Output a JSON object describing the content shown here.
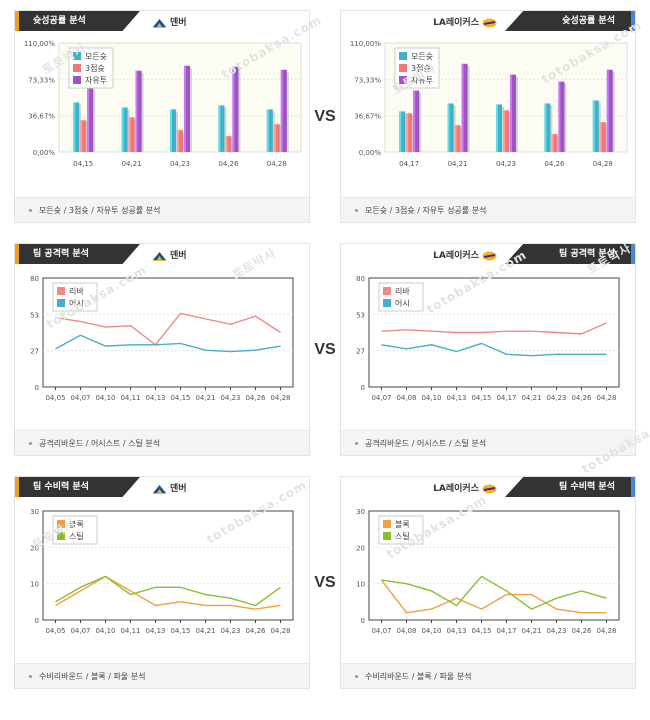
{
  "vs_label": "VS",
  "watermark": {
    "korean": "토토박사",
    "latin": "totobaksa.com"
  },
  "teams": {
    "left": {
      "name": "덴버",
      "logo_icon": "nuggets-logo-icon"
    },
    "right": {
      "name": "LA레이커스",
      "logo_icon": "lakers-logo-icon"
    }
  },
  "colors": {
    "all": "#3fb3c6",
    "three": "#f07878",
    "free": "#a052c8",
    "rebound": "#f08888",
    "assist": "#45b0c8",
    "block": "#f0a040",
    "steal": "#88c030",
    "left_accent": "#f0a020",
    "right_accent": "#4a86d8"
  },
  "sections": [
    {
      "id": "shooting",
      "title": "슛성공률 분석",
      "footer": "모든슛 / 3점슛 / 자유투 성공률 분석",
      "legend": [
        "모든슛",
        "3점슛",
        "자유투"
      ],
      "chart_data": [
        {
          "type": "bar",
          "team": "덴버",
          "categories": [
            "04,15",
            "04,21",
            "04,23",
            "04,26",
            "04,28"
          ],
          "yticks": [
            "110,00%",
            "73,33%",
            "36,67%",
            "0,00%"
          ],
          "ylim": [
            0,
            110
          ],
          "series": [
            {
              "name": "모든슛",
              "values": [
                50,
                45,
                43,
                47,
                43
              ]
            },
            {
              "name": "3점슛",
              "values": [
                32,
                35,
                22,
                16,
                28
              ]
            },
            {
              "name": "자유투",
              "values": [
                65,
                82,
                87,
                86,
                83
              ]
            }
          ]
        },
        {
          "type": "bar",
          "team": "LA레이커스",
          "categories": [
            "04,17",
            "04,21",
            "04,23",
            "04,26",
            "04,28"
          ],
          "yticks": [
            "110,00%",
            "73,33%",
            "36,67%",
            "0,00%"
          ],
          "ylim": [
            0,
            110
          ],
          "series": [
            {
              "name": "모든슛",
              "values": [
                41,
                49,
                48,
                49,
                52
              ]
            },
            {
              "name": "3점슛",
              "values": [
                39,
                27,
                42,
                18,
                30
              ]
            },
            {
              "name": "자유투",
              "values": [
                62,
                89,
                78,
                71,
                83
              ]
            }
          ]
        }
      ]
    },
    {
      "id": "offense",
      "title": "팀 공격력 분석",
      "footer": "공격리바운드 / 어시스트 / 스틸 분석",
      "legend": [
        "리바",
        "어시"
      ],
      "chart_data": [
        {
          "type": "line",
          "team": "덴버",
          "categories": [
            "04,05",
            "04,07",
            "04,10",
            "04,11",
            "04,13",
            "04,15",
            "04,21",
            "04,23",
            "04,26",
            "04,28"
          ],
          "yticks": [
            "80",
            "53",
            "27",
            "0"
          ],
          "ylim": [
            0,
            80
          ],
          "series": [
            {
              "name": "리바",
              "values": [
                51,
                48,
                44,
                45,
                31,
                54,
                50,
                46,
                52,
                40
              ]
            },
            {
              "name": "어시",
              "values": [
                28,
                38,
                30,
                31,
                31,
                32,
                27,
                26,
                27,
                30
              ]
            }
          ]
        },
        {
          "type": "line",
          "team": "LA레이커스",
          "categories": [
            "04,07",
            "04,08",
            "04,10",
            "04,13",
            "04,15",
            "04,17",
            "04,21",
            "04,23",
            "04,26",
            "04,28"
          ],
          "yticks": [
            "80",
            "53",
            "27",
            "0"
          ],
          "ylim": [
            0,
            80
          ],
          "series": [
            {
              "name": "리바",
              "values": [
                41,
                42,
                41,
                40,
                40,
                41,
                41,
                40,
                39,
                47
              ]
            },
            {
              "name": "어시",
              "values": [
                31,
                28,
                31,
                26,
                32,
                24,
                23,
                24,
                24,
                24
              ]
            }
          ]
        }
      ]
    },
    {
      "id": "defense",
      "title": "팀 수비력 분석",
      "footer": "수비리바운드 / 블록 / 파울 분석",
      "legend": [
        "블록",
        "스틸"
      ],
      "chart_data": [
        {
          "type": "line",
          "team": "덴버",
          "categories": [
            "04,05",
            "04,07",
            "04,10",
            "04,11",
            "04,13",
            "04,15",
            "04,21",
            "04,23",
            "04,26",
            "04,28"
          ],
          "yticks": [
            "30",
            "20",
            "10",
            "0"
          ],
          "ylim": [
            0,
            30
          ],
          "series": [
            {
              "name": "블록",
              "values": [
                4,
                8,
                12,
                8,
                4,
                5,
                4,
                4,
                3,
                4
              ]
            },
            {
              "name": "스틸",
              "values": [
                5,
                9,
                12,
                7,
                9,
                9,
                7,
                6,
                4,
                9
              ]
            }
          ]
        },
        {
          "type": "line",
          "team": "LA레이커스",
          "categories": [
            "04,07",
            "04,08",
            "04,10",
            "04,13",
            "04,15",
            "04,17",
            "04,21",
            "04,23",
            "04,26",
            "04,28"
          ],
          "yticks": [
            "30",
            "20",
            "10",
            "0"
          ],
          "ylim": [
            0,
            30
          ],
          "series": [
            {
              "name": "블록",
              "values": [
                11,
                2,
                3,
                6,
                3,
                7,
                7,
                3,
                2,
                2
              ]
            },
            {
              "name": "스틸",
              "values": [
                11,
                10,
                8,
                4,
                12,
                8,
                3,
                6,
                8,
                6
              ]
            }
          ]
        }
      ]
    }
  ]
}
